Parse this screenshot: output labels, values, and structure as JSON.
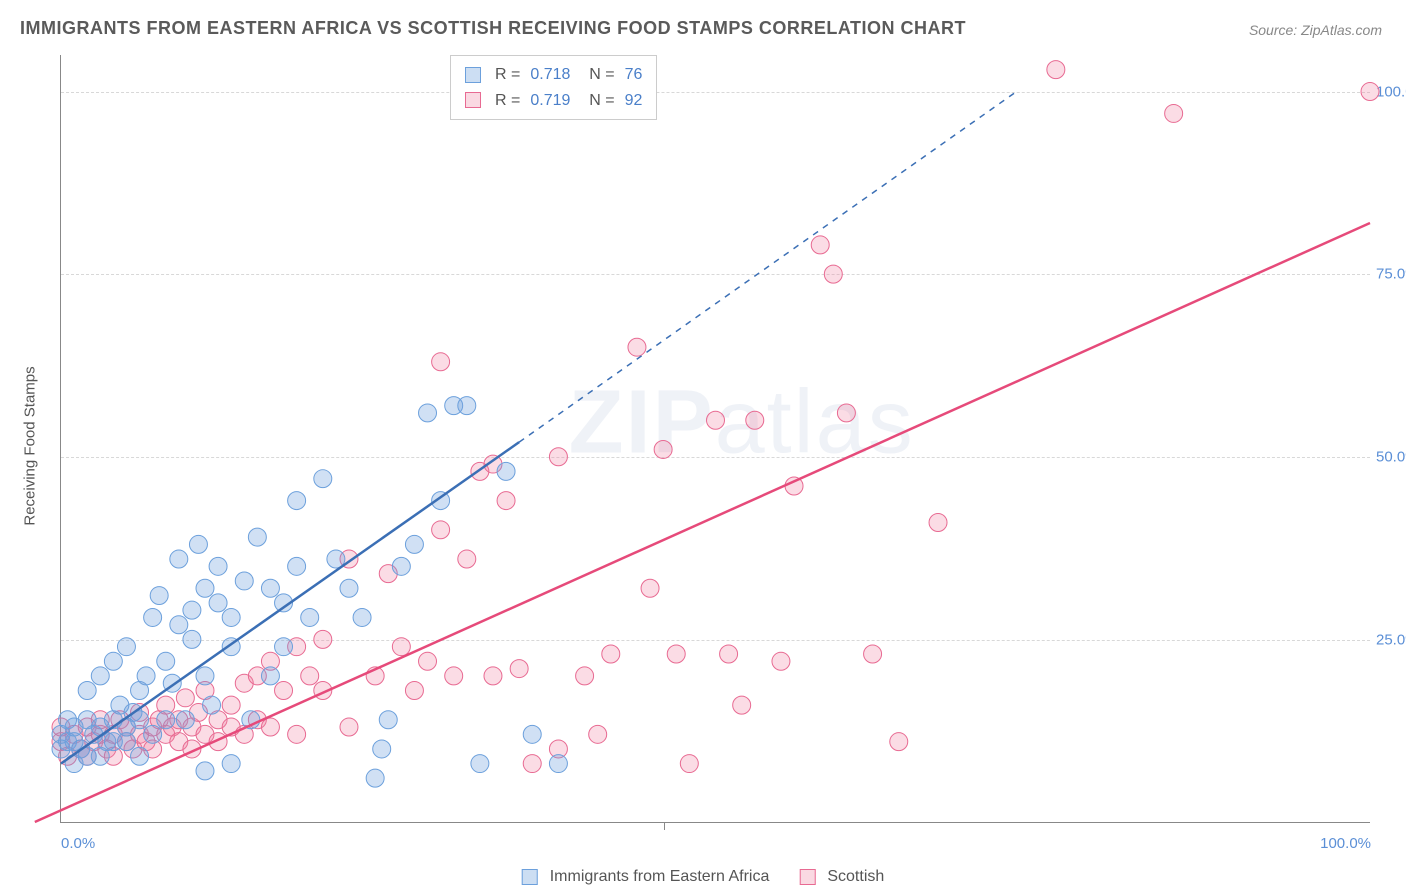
{
  "title": "IMMIGRANTS FROM EASTERN AFRICA VS SCOTTISH RECEIVING FOOD STAMPS CORRELATION CHART",
  "source_label": "Source: ZipAtlas.com",
  "watermark": "ZIPatlas",
  "y_axis_title": "Receiving Food Stamps",
  "chart": {
    "type": "scatter",
    "xlim": [
      0,
      100
    ],
    "ylim": [
      0,
      105
    ],
    "xtick_labels": {
      "0": "0.0%",
      "100": "100.0%"
    },
    "ytick_positions": [
      25,
      50,
      75,
      100
    ],
    "ytick_labels": [
      "25.0%",
      "50.0%",
      "75.0%",
      "100.0%"
    ],
    "grid_color": "#d8d8d8",
    "background_color": "#ffffff",
    "marker_radius": 9,
    "marker_opacity": 0.32,
    "trend_line_width": 2.5,
    "series": [
      {
        "name": "Immigrants from Eastern Africa",
        "color_fill": "rgba(108,160,220,0.32)",
        "color_stroke": "#6ca0dc",
        "trend_color": "#3b6fb5",
        "trend_dash_when_extrapolated": true,
        "stats": {
          "R": "0.718",
          "N": "76"
        },
        "trend": {
          "x1": 0,
          "y1": 8,
          "x2_solid": 35,
          "y2_solid": 52,
          "x2_dash": 73,
          "y2_dash": 100
        },
        "points": [
          [
            0,
            12
          ],
          [
            0,
            10
          ],
          [
            0.5,
            14
          ],
          [
            1,
            11
          ],
          [
            1,
            13
          ],
          [
            1.5,
            10
          ],
          [
            2,
            14
          ],
          [
            2,
            18
          ],
          [
            2.5,
            12
          ],
          [
            3,
            13
          ],
          [
            3,
            20
          ],
          [
            3.5,
            11
          ],
          [
            4,
            14
          ],
          [
            4,
            22
          ],
          [
            4.5,
            16
          ],
          [
            5,
            13
          ],
          [
            5,
            24
          ],
          [
            5.5,
            15
          ],
          [
            6,
            14
          ],
          [
            6,
            18
          ],
          [
            6.5,
            20
          ],
          [
            7,
            12
          ],
          [
            7,
            28
          ],
          [
            7.5,
            31
          ],
          [
            8,
            14
          ],
          [
            8,
            22
          ],
          [
            8.5,
            19
          ],
          [
            9,
            27
          ],
          [
            9,
            36
          ],
          [
            9.5,
            14
          ],
          [
            10,
            29
          ],
          [
            10,
            25
          ],
          [
            10.5,
            38
          ],
          [
            11,
            32
          ],
          [
            11,
            20
          ],
          [
            11.5,
            16
          ],
          [
            12,
            30
          ],
          [
            12,
            35
          ],
          [
            13,
            24
          ],
          [
            13,
            28
          ],
          [
            14,
            33
          ],
          [
            14.5,
            14
          ],
          [
            15,
            39
          ],
          [
            16,
            32
          ],
          [
            16,
            20
          ],
          [
            17,
            24
          ],
          [
            17,
            30
          ],
          [
            18,
            44
          ],
          [
            18,
            35
          ],
          [
            19,
            28
          ],
          [
            20,
            47
          ],
          [
            21,
            36
          ],
          [
            22,
            32
          ],
          [
            23,
            28
          ],
          [
            24,
            6
          ],
          [
            24.5,
            10
          ],
          [
            25,
            14
          ],
          [
            26,
            35
          ],
          [
            27,
            38
          ],
          [
            28,
            56
          ],
          [
            29,
            44
          ],
          [
            30,
            57
          ],
          [
            31,
            57
          ],
          [
            32,
            8
          ],
          [
            34,
            48
          ],
          [
            36,
            12
          ],
          [
            38,
            8
          ],
          [
            11,
            7
          ],
          [
            13,
            8
          ],
          [
            6,
            9
          ],
          [
            4,
            11
          ],
          [
            2,
            9
          ],
          [
            1,
            8
          ],
          [
            0.5,
            11
          ],
          [
            3,
            9
          ],
          [
            5,
            11
          ]
        ]
      },
      {
        "name": "Scottish",
        "color_fill": "rgba(240,130,160,0.28)",
        "color_stroke": "#e86a92",
        "trend_color": "#e64a7a",
        "trend_dash_when_extrapolated": false,
        "stats": {
          "R": "0.719",
          "N": "92"
        },
        "trend": {
          "x1": -2,
          "y1": 0,
          "x2": 100,
          "y2": 82
        },
        "points": [
          [
            0,
            11
          ],
          [
            0,
            13
          ],
          [
            0.5,
            9
          ],
          [
            1,
            12
          ],
          [
            1.5,
            10
          ],
          [
            2,
            13
          ],
          [
            2,
            9
          ],
          [
            2.5,
            11
          ],
          [
            3,
            12
          ],
          [
            3,
            14
          ],
          [
            3.5,
            10
          ],
          [
            4,
            12
          ],
          [
            4,
            9
          ],
          [
            4.5,
            14
          ],
          [
            5,
            11
          ],
          [
            5,
            13
          ],
          [
            5.5,
            10
          ],
          [
            6,
            12
          ],
          [
            6,
            15
          ],
          [
            6.5,
            11
          ],
          [
            7,
            13
          ],
          [
            7,
            10
          ],
          [
            7.5,
            14
          ],
          [
            8,
            12
          ],
          [
            8,
            16
          ],
          [
            8.5,
            13
          ],
          [
            9,
            11
          ],
          [
            9,
            14
          ],
          [
            9.5,
            17
          ],
          [
            10,
            13
          ],
          [
            10,
            10
          ],
          [
            10.5,
            15
          ],
          [
            11,
            12
          ],
          [
            11,
            18
          ],
          [
            12,
            14
          ],
          [
            12,
            11
          ],
          [
            13,
            16
          ],
          [
            13,
            13
          ],
          [
            14,
            12
          ],
          [
            14,
            19
          ],
          [
            15,
            20
          ],
          [
            15,
            14
          ],
          [
            16,
            22
          ],
          [
            16,
            13
          ],
          [
            17,
            18
          ],
          [
            18,
            24
          ],
          [
            18,
            12
          ],
          [
            19,
            20
          ],
          [
            20,
            18
          ],
          [
            20,
            25
          ],
          [
            22,
            13
          ],
          [
            22,
            36
          ],
          [
            24,
            20
          ],
          [
            25,
            34
          ],
          [
            26,
            24
          ],
          [
            27,
            18
          ],
          [
            28,
            22
          ],
          [
            29,
            40
          ],
          [
            30,
            20
          ],
          [
            31,
            36
          ],
          [
            32,
            48
          ],
          [
            33,
            20
          ],
          [
            34,
            44
          ],
          [
            35,
            21
          ],
          [
            36,
            8
          ],
          [
            38,
            10
          ],
          [
            38,
            50
          ],
          [
            40,
            20
          ],
          [
            41,
            12
          ],
          [
            42,
            23
          ],
          [
            44,
            65
          ],
          [
            45,
            32
          ],
          [
            46,
            51
          ],
          [
            47,
            23
          ],
          [
            48,
            8
          ],
          [
            50,
            55
          ],
          [
            51,
            23
          ],
          [
            52,
            16
          ],
          [
            53,
            55
          ],
          [
            55,
            22
          ],
          [
            56,
            46
          ],
          [
            58,
            79
          ],
          [
            59,
            75
          ],
          [
            60,
            56
          ],
          [
            62,
            23
          ],
          [
            64,
            11
          ],
          [
            67,
            41
          ],
          [
            76,
            103
          ],
          [
            85,
            97
          ],
          [
            100,
            100
          ],
          [
            29,
            63
          ],
          [
            33,
            49
          ]
        ]
      }
    ]
  },
  "legend_bottom": [
    {
      "swatch_fill": "rgba(108,160,220,0.35)",
      "swatch_stroke": "#6ca0dc",
      "label": "Immigrants from Eastern Africa"
    },
    {
      "swatch_fill": "rgba(240,130,160,0.3)",
      "swatch_stroke": "#e86a92",
      "label": "Scottish"
    }
  ],
  "vticks": [
    46
  ]
}
